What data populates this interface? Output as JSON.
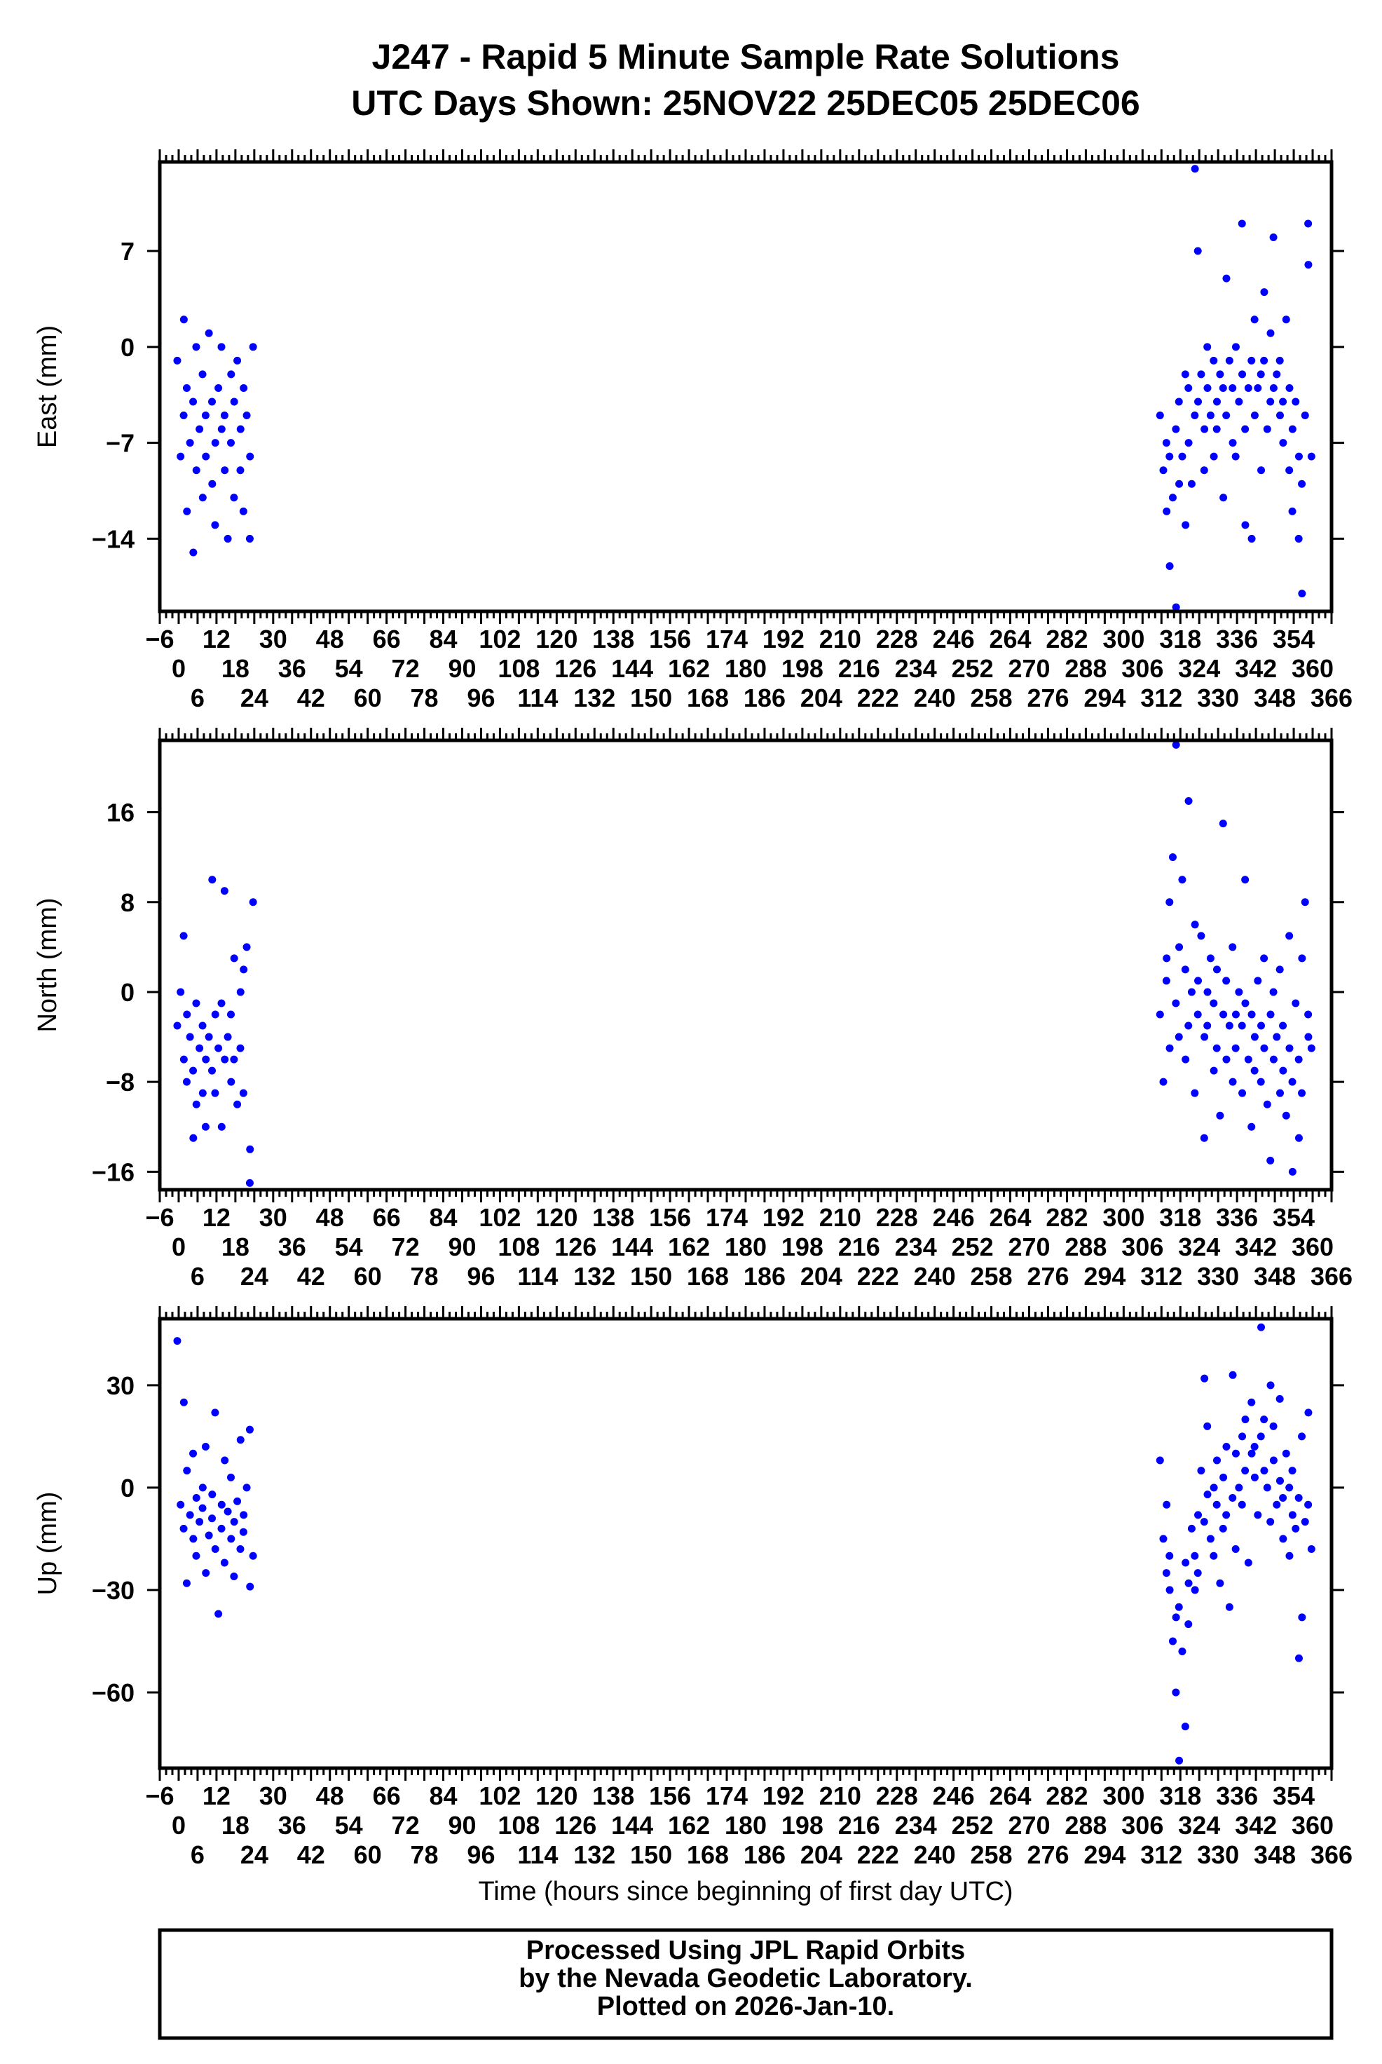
{
  "title_line1": "J247 - Rapid 5 Minute Sample Rate Solutions",
  "title_line2": "UTC Days Shown:  25NOV22 25DEC05 25DEC06",
  "footer": [
    "Processed Using JPL Rapid Orbits",
    "by the Nevada Geodetic Laboratory.",
    "Plotted on 2026-Jan-10."
  ],
  "point_color": "#0000ff",
  "chart_data": [
    {
      "type": "scatter",
      "ylabel": "East (mm)",
      "xlabel": "",
      "xlim": [
        -6,
        366
      ],
      "xtick_step": 6,
      "ylim": [
        -19.3,
        13.5
      ],
      "yticks": [
        7,
        0,
        -7,
        -14
      ],
      "clusters": [
        {
          "t0": 0,
          "dt": 0.6,
          "values": [
            -1,
            -8,
            2,
            -5,
            -12,
            -3,
            -7,
            -15,
            -4,
            -9,
            0,
            -6,
            -11,
            -2,
            -8,
            -5,
            1,
            -10,
            -4,
            -7,
            -13,
            -3,
            -6,
            0,
            -9,
            -5,
            -14,
            -2,
            -7,
            -4,
            -11,
            -1,
            -6,
            -9,
            -3,
            -12,
            -5,
            -8,
            -14,
            0
          ]
        },
        {
          "t0": 312,
          "dt": 0.6,
          "values": [
            -5,
            -9,
            -12,
            -7,
            -16,
            -8,
            -11,
            -19,
            -6,
            -10,
            -4,
            -8,
            -13,
            -2,
            -7,
            -3,
            -10,
            13,
            -5,
            -4,
            7,
            -2,
            -6,
            -9,
            -3,
            0,
            -5,
            -8,
            -1,
            -4,
            -6,
            -2,
            -11,
            -3,
            5,
            -5,
            -1,
            -7,
            -3,
            0,
            -8,
            -4,
            -2,
            9,
            -13,
            -6,
            -3,
            -14,
            -1,
            -5,
            2,
            -3,
            -9,
            -2,
            4,
            -1,
            -6,
            1,
            -4,
            -3,
            8,
            -2,
            -5,
            -1,
            -7,
            -4,
            2,
            -3,
            -9,
            -6,
            -12,
            -4,
            -8,
            -14,
            -18,
            -10,
            -5,
            6,
            9,
            -8
          ]
        }
      ]
    },
    {
      "type": "scatter",
      "ylabel": "North (mm)",
      "xlabel": "",
      "xlim": [
        -6,
        366
      ],
      "xtick_step": 6,
      "ylim": [
        -17.6,
        22.4
      ],
      "yticks": [
        16,
        8,
        0,
        -8,
        -16
      ],
      "clusters": [
        {
          "t0": 0,
          "dt": 0.6,
          "values": [
            -3,
            0,
            -6,
            5,
            -2,
            -8,
            -4,
            -13,
            -7,
            -10,
            -1,
            -5,
            -9,
            -3,
            -6,
            -12,
            -4,
            10,
            -7,
            -2,
            -9,
            -5,
            -12,
            -1,
            -6,
            9,
            -4,
            -8,
            -2,
            3,
            -6,
            -10,
            0,
            -5,
            2,
            -9,
            4,
            -14,
            -17,
            8
          ]
        },
        {
          "t0": 312,
          "dt": 0.6,
          "values": [
            -2,
            -8,
            3,
            1,
            -5,
            8,
            12,
            22,
            -1,
            4,
            -4,
            10,
            -6,
            2,
            17,
            -3,
            0,
            6,
            -9,
            1,
            -2,
            5,
            -4,
            -13,
            0,
            -3,
            3,
            -7,
            -1,
            2,
            -5,
            -11,
            -2,
            15,
            -6,
            1,
            -3,
            -8,
            4,
            -2,
            -5,
            0,
            -9,
            -3,
            -1,
            10,
            -6,
            -2,
            -12,
            -4,
            -7,
            1,
            -3,
            -8,
            -5,
            3,
            -10,
            -2,
            -15,
            -6,
            0,
            -4,
            -9,
            2,
            -7,
            -3,
            -11,
            -5,
            5,
            -16,
            -8,
            -1,
            -13,
            -6,
            3,
            -9,
            8,
            -4,
            -2,
            -5
          ]
        }
      ]
    },
    {
      "type": "scatter",
      "ylabel": "Up (mm)",
      "xlabel": "Time (hours since beginning of first day UTC)",
      "xlim": [
        -6,
        366
      ],
      "xtick_step": 6,
      "ylim": [
        -82.2,
        49.5
      ],
      "yticks": [
        30,
        0,
        -30,
        -60
      ],
      "clusters": [
        {
          "t0": 0,
          "dt": 0.6,
          "values": [
            43,
            -5,
            25,
            -12,
            5,
            -28,
            -8,
            -15,
            10,
            -3,
            -20,
            -10,
            0,
            -6,
            -25,
            12,
            -14,
            -2,
            -9,
            -18,
            22,
            -37,
            -5,
            -12,
            8,
            -22,
            -7,
            -15,
            3,
            -10,
            -26,
            -4,
            14,
            -18,
            -8,
            -13,
            0,
            -29,
            17,
            -20
          ]
        },
        {
          "t0": 312,
          "dt": 0.6,
          "values": [
            8,
            -15,
            -5,
            -25,
            -30,
            -20,
            -45,
            -38,
            -60,
            -80,
            -35,
            -48,
            -22,
            -70,
            -28,
            -40,
            -12,
            -30,
            -20,
            -8,
            -25,
            5,
            32,
            -10,
            -2,
            18,
            -15,
            0,
            -20,
            8,
            -5,
            -28,
            3,
            -12,
            12,
            -8,
            -35,
            33,
            -3,
            10,
            -18,
            0,
            15,
            -5,
            20,
            5,
            -22,
            10,
            25,
            3,
            12,
            -8,
            47,
            15,
            5,
            20,
            0,
            30,
            -10,
            8,
            18,
            -5,
            2,
            26,
            -15,
            -3,
            10,
            -20,
            0,
            -8,
            5,
            -12,
            -50,
            -3,
            -38,
            15,
            -10,
            22,
            -5,
            -18
          ]
        }
      ]
    }
  ]
}
